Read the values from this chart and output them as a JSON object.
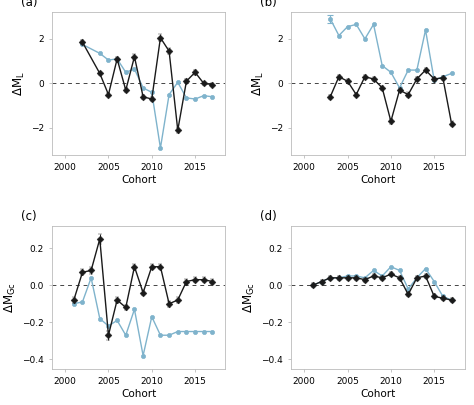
{
  "panels": {
    "a": {
      "label": "(a)",
      "ylabel": "$\\Delta M_L$",
      "xlabel": "Cohort",
      "xlim": [
        1998.5,
        2018.5
      ],
      "ylim": [
        -3.2,
        3.2
      ],
      "yticks": [
        -2,
        0,
        2
      ],
      "xticks": [
        2000,
        2005,
        2010,
        2015
      ],
      "black_x": [
        2002,
        2004,
        2005,
        2006,
        2007,
        2008,
        2009,
        2010,
        2011,
        2012,
        2013,
        2014,
        2015,
        2016,
        2017
      ],
      "black_y": [
        1.85,
        0.45,
        -0.5,
        1.1,
        -0.3,
        1.2,
        -0.6,
        -0.7,
        2.05,
        1.45,
        -2.1,
        0.1,
        0.5,
        0.0,
        -0.05
      ],
      "black_yerr": [
        0.1,
        0.08,
        0.08,
        0.1,
        0.08,
        0.1,
        0.08,
        0.1,
        0.15,
        0.12,
        0.12,
        0.08,
        0.1,
        0.08,
        0.08
      ],
      "blue_x": [
        2002,
        2004,
        2005,
        2006,
        2007,
        2008,
        2009,
        2010,
        2011,
        2012,
        2013,
        2014,
        2015,
        2016,
        2017
      ],
      "blue_y": [
        1.75,
        1.35,
        1.05,
        1.1,
        0.5,
        0.65,
        -0.2,
        -0.4,
        -2.9,
        -0.5,
        0.05,
        -0.65,
        -0.7,
        -0.55,
        -0.6
      ]
    },
    "b": {
      "label": "(b)",
      "ylabel": "$\\Delta M_L$",
      "xlabel": "Cohort",
      "xlim": [
        1998.5,
        2018.5
      ],
      "ylim": [
        -3.2,
        3.2
      ],
      "yticks": [
        -2,
        0,
        2
      ],
      "xticks": [
        2000,
        2005,
        2010,
        2015
      ],
      "black_x": [
        2003,
        2004,
        2005,
        2006,
        2007,
        2008,
        2009,
        2010,
        2011,
        2012,
        2013,
        2014,
        2015,
        2016,
        2017
      ],
      "black_y": [
        -0.6,
        0.3,
        0.1,
        -0.5,
        0.3,
        0.2,
        -0.2,
        -1.7,
        -0.3,
        -0.5,
        0.2,
        0.6,
        0.2,
        0.25,
        -1.8
      ],
      "black_yerr": [
        0.08,
        0.1,
        0.08,
        0.08,
        0.08,
        0.08,
        0.08,
        0.12,
        0.1,
        0.1,
        0.08,
        0.08,
        0.08,
        0.08,
        0.1
      ],
      "blue_x": [
        2003,
        2004,
        2005,
        2006,
        2007,
        2008,
        2009,
        2010,
        2011,
        2012,
        2013,
        2014,
        2015,
        2016,
        2017
      ],
      "blue_y": [
        2.9,
        2.15,
        2.55,
        2.65,
        2.0,
        2.65,
        0.8,
        0.5,
        -0.2,
        0.6,
        0.6,
        2.4,
        0.15,
        0.3,
        0.45
      ],
      "blue_yerr_x": 2003,
      "blue_yerr_val": 0.18
    },
    "c": {
      "label": "(c)",
      "ylabel": "$\\Delta M_{Gc}$",
      "xlabel": "Cohort",
      "xlim": [
        1998.5,
        2018.5
      ],
      "ylim": [
        -0.45,
        0.32
      ],
      "yticks": [
        -0.4,
        -0.2,
        0.0,
        0.2
      ],
      "xticks": [
        2000,
        2005,
        2010,
        2015
      ],
      "black_x": [
        2001,
        2002,
        2003,
        2004,
        2005,
        2006,
        2007,
        2008,
        2009,
        2010,
        2011,
        2012,
        2013,
        2014,
        2015,
        2016,
        2017
      ],
      "black_y": [
        -0.08,
        0.07,
        0.08,
        0.25,
        -0.27,
        -0.08,
        -0.12,
        0.1,
        -0.04,
        0.1,
        0.1,
        -0.1,
        -0.08,
        0.02,
        0.03,
        0.03,
        0.02
      ],
      "black_yerr": [
        0.015,
        0.015,
        0.02,
        0.025,
        0.025,
        0.015,
        0.015,
        0.015,
        0.015,
        0.015,
        0.015,
        0.015,
        0.015,
        0.015,
        0.015,
        0.015,
        0.015
      ],
      "blue_x": [
        2001,
        2002,
        2003,
        2004,
        2005,
        2006,
        2007,
        2008,
        2009,
        2010,
        2011,
        2012,
        2013,
        2014,
        2015,
        2016,
        2017
      ],
      "blue_y": [
        -0.1,
        -0.09,
        0.04,
        -0.18,
        -0.22,
        -0.19,
        -0.27,
        -0.13,
        -0.38,
        -0.17,
        -0.27,
        -0.27,
        -0.25,
        -0.25,
        -0.25,
        -0.25,
        -0.25
      ]
    },
    "d": {
      "label": "(d)",
      "ylabel": "$\\Delta M_{Gc}$",
      "xlabel": "Cohort",
      "xlim": [
        1998.5,
        2018.5
      ],
      "ylim": [
        -0.45,
        0.32
      ],
      "yticks": [
        -0.4,
        -0.2,
        0.0,
        0.2
      ],
      "xticks": [
        2000,
        2005,
        2010,
        2015
      ],
      "black_x": [
        2001,
        2002,
        2003,
        2004,
        2005,
        2006,
        2007,
        2008,
        2009,
        2010,
        2011,
        2012,
        2013,
        2014,
        2015,
        2016,
        2017
      ],
      "black_y": [
        0.0,
        0.02,
        0.04,
        0.04,
        0.04,
        0.04,
        0.03,
        0.05,
        0.04,
        0.06,
        0.04,
        -0.05,
        0.04,
        0.05,
        -0.06,
        -0.07,
        -0.08
      ],
      "black_yerr": [
        0.01,
        0.01,
        0.01,
        0.01,
        0.01,
        0.01,
        0.01,
        0.01,
        0.01,
        0.01,
        0.01,
        0.01,
        0.01,
        0.01,
        0.01,
        0.01,
        0.01
      ],
      "blue_x": [
        2001,
        2002,
        2003,
        2004,
        2005,
        2006,
        2007,
        2008,
        2009,
        2010,
        2011,
        2012,
        2013,
        2014,
        2015,
        2016,
        2017
      ],
      "blue_y": [
        0.0,
        0.02,
        0.04,
        0.04,
        0.05,
        0.05,
        0.04,
        0.08,
        0.05,
        0.1,
        0.08,
        -0.02,
        0.04,
        0.09,
        0.02,
        -0.06,
        -0.08
      ]
    }
  },
  "black_color": "#1a1a1a",
  "blue_color": "#7fb3cc",
  "background_color": "#ffffff",
  "plot_bg_color": "#ffffff",
  "spine_color": "#bbbbbb",
  "line_width": 1.0,
  "black_marker_size": 3.5,
  "blue_marker_size": 3.0,
  "font_size": 7.5,
  "label_font_size": 8.5,
  "tick_font_size": 6.5
}
